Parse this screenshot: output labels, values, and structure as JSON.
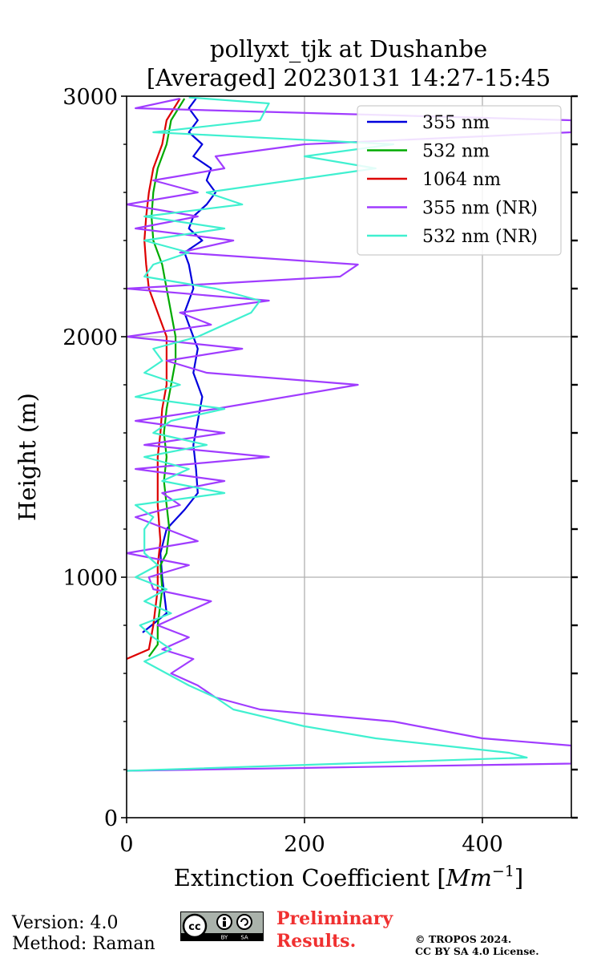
{
  "chart_data": {
    "type": "line",
    "title_line1": "pollyxt_tjk at Dushanbe",
    "title_line2": "[Averaged] 20230131 14:27-15:45",
    "xlabel": "Extinction Coefficient [Mm$^{-1}$]",
    "xlabel_parts": {
      "main": "Extinction Coefficient [",
      "unit": "Mm",
      "exp": "−1",
      "close": "]"
    },
    "ylabel": "Height (m)",
    "xlim": [
      0,
      500
    ],
    "ylim": [
      0,
      3000
    ],
    "x_ticks": [
      0,
      200,
      400
    ],
    "x_tick_labels": [
      "0",
      "200",
      "400"
    ],
    "y_ticks": [
      0,
      1000,
      2000,
      3000
    ],
    "y_tick_labels": [
      "0",
      "1000",
      "2000",
      "3000"
    ],
    "y_minor_step": 200,
    "grid": true,
    "legend_position": "top-right",
    "series": [
      {
        "name": "355 nm",
        "color": "#0000dd",
        "points": [
          [
            18,
            770
          ],
          [
            45,
            850
          ],
          [
            40,
            1000
          ],
          [
            38,
            1100
          ],
          [
            45,
            1200
          ],
          [
            65,
            1280
          ],
          [
            80,
            1350
          ],
          [
            78,
            1450
          ],
          [
            75,
            1550
          ],
          [
            80,
            1650
          ],
          [
            85,
            1750
          ],
          [
            75,
            1850
          ],
          [
            80,
            1950
          ],
          [
            70,
            2050
          ],
          [
            65,
            2100
          ],
          [
            75,
            2200
          ],
          [
            70,
            2300
          ],
          [
            65,
            2350
          ],
          [
            85,
            2400
          ],
          [
            70,
            2450
          ],
          [
            75,
            2500
          ],
          [
            90,
            2550
          ],
          [
            100,
            2600
          ],
          [
            90,
            2650
          ],
          [
            95,
            2700
          ],
          [
            75,
            2750
          ],
          [
            85,
            2800
          ],
          [
            70,
            2850
          ],
          [
            80,
            2900
          ],
          [
            70,
            2950
          ],
          [
            78,
            2990
          ]
        ]
      },
      {
        "name": "532 nm",
        "color": "#00aa00",
        "points": [
          [
            25,
            670
          ],
          [
            35,
            720
          ],
          [
            35,
            800
          ],
          [
            40,
            950
          ],
          [
            38,
            1050
          ],
          [
            45,
            1100
          ],
          [
            48,
            1200
          ],
          [
            45,
            1300
          ],
          [
            42,
            1400
          ],
          [
            45,
            1500
          ],
          [
            42,
            1600
          ],
          [
            45,
            1700
          ],
          [
            50,
            1800
          ],
          [
            55,
            1900
          ],
          [
            55,
            2000
          ],
          [
            50,
            2100
          ],
          [
            45,
            2200
          ],
          [
            40,
            2300
          ],
          [
            30,
            2400
          ],
          [
            28,
            2500
          ],
          [
            30,
            2600
          ],
          [
            35,
            2700
          ],
          [
            45,
            2800
          ],
          [
            50,
            2900
          ],
          [
            65,
            2990
          ]
        ]
      },
      {
        "name": "1064 nm",
        "color": "#dd0000",
        "points": [
          [
            0,
            660
          ],
          [
            25,
            700
          ],
          [
            30,
            800
          ],
          [
            35,
            950
          ],
          [
            35,
            1050
          ],
          [
            38,
            1150
          ],
          [
            35,
            1300
          ],
          [
            35,
            1400
          ],
          [
            35,
            1500
          ],
          [
            38,
            1600
          ],
          [
            40,
            1700
          ],
          [
            45,
            1800
          ],
          [
            45,
            1900
          ],
          [
            45,
            2000
          ],
          [
            35,
            2100
          ],
          [
            25,
            2200
          ],
          [
            22,
            2300
          ],
          [
            20,
            2400
          ],
          [
            22,
            2500
          ],
          [
            25,
            2600
          ],
          [
            30,
            2700
          ],
          [
            40,
            2800
          ],
          [
            45,
            2900
          ],
          [
            60,
            2990
          ]
        ]
      },
      {
        "name": "355 nm (NR)",
        "color": "#a03cff",
        "points": [
          [
            0,
            195
          ],
          [
            500,
            225
          ],
          [
            500,
            300
          ],
          [
            400,
            330
          ],
          [
            300,
            400
          ],
          [
            150,
            450
          ],
          [
            100,
            500
          ],
          [
            80,
            550
          ],
          [
            50,
            600
          ],
          [
            75,
            660
          ],
          [
            40,
            700
          ],
          [
            70,
            750
          ],
          [
            35,
            800
          ],
          [
            95,
            900
          ],
          [
            30,
            950
          ],
          [
            25,
            1000
          ],
          [
            70,
            1050
          ],
          [
            0,
            1100
          ],
          [
            80,
            1150
          ],
          [
            10,
            1250
          ],
          [
            60,
            1300
          ],
          [
            40,
            1350
          ],
          [
            110,
            1400
          ],
          [
            10,
            1450
          ],
          [
            160,
            1500
          ],
          [
            20,
            1550
          ],
          [
            110,
            1600
          ],
          [
            10,
            1650
          ],
          [
            100,
            1700
          ],
          [
            260,
            1800
          ],
          [
            90,
            1850
          ],
          [
            45,
            1900
          ],
          [
            130,
            1950
          ],
          [
            0,
            2000
          ],
          [
            95,
            2050
          ],
          [
            60,
            2100
          ],
          [
            160,
            2150
          ],
          [
            0,
            2200
          ],
          [
            240,
            2250
          ],
          [
            260,
            2300
          ],
          [
            60,
            2350
          ],
          [
            120,
            2400
          ],
          [
            10,
            2450
          ],
          [
            80,
            2500
          ],
          [
            0,
            2550
          ],
          [
            80,
            2600
          ],
          [
            30,
            2650
          ],
          [
            110,
            2700
          ],
          [
            100,
            2750
          ],
          [
            200,
            2800
          ],
          [
            500,
            2850
          ],
          [
            500,
            2900
          ],
          [
            10,
            2950
          ],
          [
            60,
            2990
          ]
        ]
      },
      {
        "name": "532 nm (NR)",
        "color": "#40f0d0",
        "points": [
          [
            0,
            195
          ],
          [
            450,
            250
          ],
          [
            430,
            270
          ],
          [
            280,
            330
          ],
          [
            200,
            380
          ],
          [
            120,
            450
          ],
          [
            100,
            500
          ],
          [
            70,
            550
          ],
          [
            45,
            600
          ],
          [
            20,
            650
          ],
          [
            50,
            700
          ],
          [
            30,
            750
          ],
          [
            15,
            800
          ],
          [
            50,
            850
          ],
          [
            20,
            900
          ],
          [
            45,
            950
          ],
          [
            10,
            1000
          ],
          [
            35,
            1050
          ],
          [
            20,
            1100
          ],
          [
            20,
            1200
          ],
          [
            30,
            1250
          ],
          [
            10,
            1300
          ],
          [
            110,
            1350
          ],
          [
            40,
            1400
          ],
          [
            70,
            1450
          ],
          [
            20,
            1500
          ],
          [
            90,
            1550
          ],
          [
            30,
            1600
          ],
          [
            50,
            1650
          ],
          [
            110,
            1700
          ],
          [
            10,
            1750
          ],
          [
            60,
            1800
          ],
          [
            20,
            1850
          ],
          [
            40,
            1900
          ],
          [
            30,
            1950
          ],
          [
            80,
            2000
          ],
          [
            140,
            2100
          ],
          [
            150,
            2150
          ],
          [
            100,
            2200
          ],
          [
            20,
            2250
          ],
          [
            30,
            2300
          ],
          [
            70,
            2350
          ],
          [
            20,
            2400
          ],
          [
            110,
            2450
          ],
          [
            20,
            2500
          ],
          [
            130,
            2550
          ],
          [
            90,
            2600
          ],
          [
            280,
            2700
          ],
          [
            200,
            2750
          ],
          [
            300,
            2800
          ],
          [
            30,
            2850
          ],
          [
            150,
            2900
          ],
          [
            160,
            2970
          ],
          [
            70,
            2995
          ]
        ]
      }
    ]
  },
  "footer": {
    "version": "Version: 4.0",
    "method": "Method: Raman",
    "cc_text": "cc",
    "cc_by": "BY",
    "cc_sa": "SA",
    "preliminary_line1": "Preliminary",
    "preliminary_line2": "Results.",
    "copyright_line1": "© TROPOS 2024.",
    "copyright_line2": "CC BY SA 4.0 License."
  }
}
